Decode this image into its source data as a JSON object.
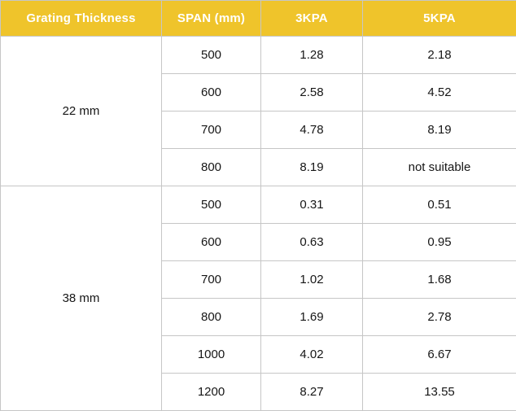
{
  "table": {
    "headers": {
      "thickness": "Grating Thickness",
      "span": "SPAN (mm)",
      "kpa3": "3KPA",
      "kpa5": "5KPA"
    },
    "colors": {
      "header_bg": "#EFC42B",
      "header_text": "#FFFFFF",
      "border": "#C6C6C6",
      "body_text": "#161616"
    },
    "groups": [
      {
        "thickness": "22 mm",
        "rows": [
          {
            "span": "500",
            "kpa3": "1.28",
            "kpa5": "2.18"
          },
          {
            "span": "600",
            "kpa3": "2.58",
            "kpa5": "4.52"
          },
          {
            "span": "700",
            "kpa3": "4.78",
            "kpa5": "8.19"
          },
          {
            "span": "800",
            "kpa3": "8.19",
            "kpa5": "not suitable"
          }
        ]
      },
      {
        "thickness": "38 mm",
        "rows": [
          {
            "span": "500",
            "kpa3": "0.31",
            "kpa5": "0.51"
          },
          {
            "span": "600",
            "kpa3": "0.63",
            "kpa5": "0.95"
          },
          {
            "span": "700",
            "kpa3": "1.02",
            "kpa5": "1.68"
          },
          {
            "span": "800",
            "kpa3": "1.69",
            "kpa5": "2.78"
          },
          {
            "span": "1000",
            "kpa3": "4.02",
            "kpa5": "6.67"
          },
          {
            "span": "1200",
            "kpa3": "8.27",
            "kpa5": "13.55"
          }
        ]
      }
    ]
  }
}
